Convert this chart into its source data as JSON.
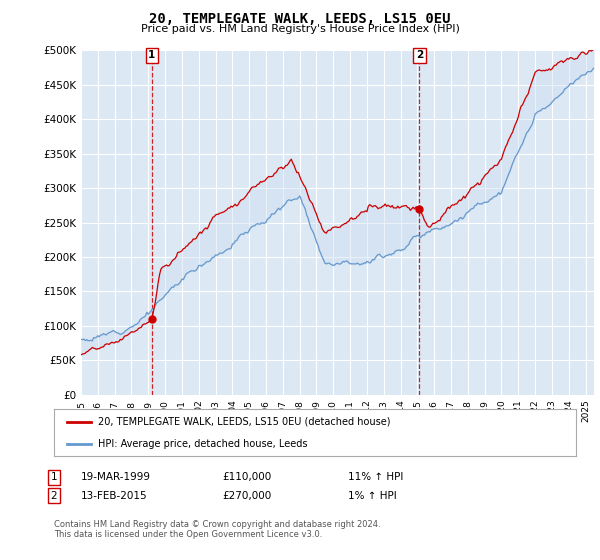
{
  "title": "20, TEMPLEGATE WALK, LEEDS, LS15 0EU",
  "subtitle": "Price paid vs. HM Land Registry's House Price Index (HPI)",
  "ylabel_ticks": [
    "£0",
    "£50K",
    "£100K",
    "£150K",
    "£200K",
    "£250K",
    "£300K",
    "£350K",
    "£400K",
    "£450K",
    "£500K"
  ],
  "ytick_values": [
    0,
    50000,
    100000,
    150000,
    200000,
    250000,
    300000,
    350000,
    400000,
    450000,
    500000
  ],
  "ylim": [
    0,
    500000
  ],
  "xlim_start": 1995.0,
  "xlim_end": 2025.5,
  "sale1_x": 1999.21,
  "sale1_y": 110000,
  "sale1_label": "19-MAR-1999",
  "sale1_price": "£110,000",
  "sale1_hpi": "11% ↑ HPI",
  "sale2_x": 2015.12,
  "sale2_y": 270000,
  "sale2_label": "13-FEB-2015",
  "sale2_price": "£270,000",
  "sale2_hpi": "1% ↑ HPI",
  "red_line_label": "20, TEMPLEGATE WALK, LEEDS, LS15 0EU (detached house)",
  "blue_line_label": "HPI: Average price, detached house, Leeds",
  "footer": "Contains HM Land Registry data © Crown copyright and database right 2024.\nThis data is licensed under the Open Government Licence v3.0.",
  "background_color": "#ffffff",
  "plot_bg_color": "#dce9f5",
  "grid_color": "#ffffff",
  "red_color": "#cc0000",
  "blue_color": "#6699cc",
  "fill_color": "#c8d8ee",
  "marker_box_color": "#cc0000",
  "seed": 12
}
